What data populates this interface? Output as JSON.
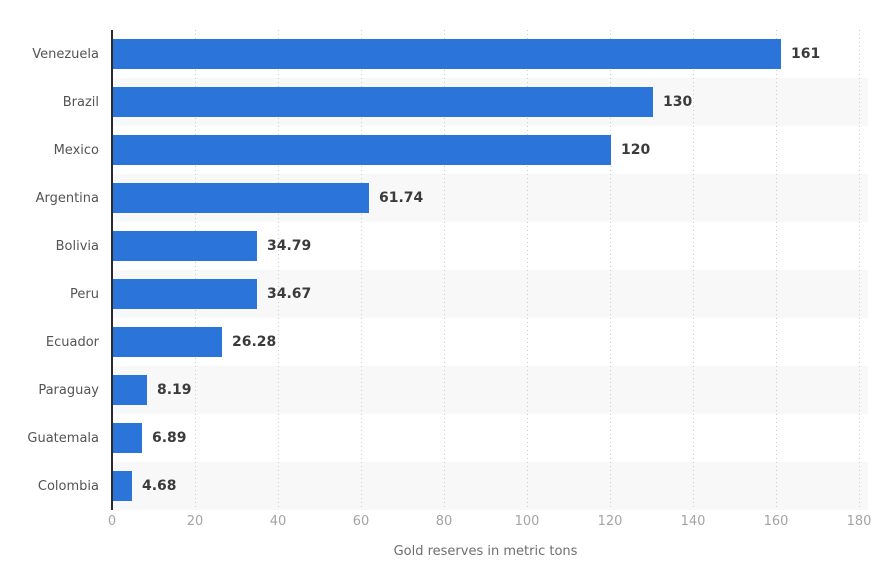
{
  "chart_data": {
    "type": "bar",
    "orientation": "horizontal",
    "title": "",
    "xlabel": "Gold reserves in metric tons",
    "ylabel": "",
    "categories": [
      "Venezuela",
      "Brazil",
      "Mexico",
      "Argentina",
      "Bolivia",
      "Peru",
      "Ecuador",
      "Paraguay",
      "Guatemala",
      "Colombia"
    ],
    "values": [
      161,
      130,
      120,
      61.74,
      34.79,
      34.67,
      26.28,
      8.19,
      6.89,
      4.68
    ],
    "value_labels": [
      "161",
      "130",
      "120",
      "61.74",
      "34.79",
      "34.67",
      "26.28",
      "8.19",
      "6.89",
      "4.68"
    ],
    "x_ticks": [
      0,
      20,
      40,
      60,
      80,
      100,
      120,
      140,
      160,
      180
    ],
    "xlim": [
      0,
      180
    ],
    "grid": "vertical-dotted",
    "legend": "none",
    "colors": {
      "bar": "#2a74da",
      "stripe": "#f8f8f8",
      "grid": "#cccccc",
      "axis_line": "#2b2b2b",
      "category_label": "#545454",
      "value_label": "#3b3b3b",
      "tick_label": "#a4a4a4",
      "axis_title": "#6f6f6f",
      "background": "#ffffff"
    }
  }
}
